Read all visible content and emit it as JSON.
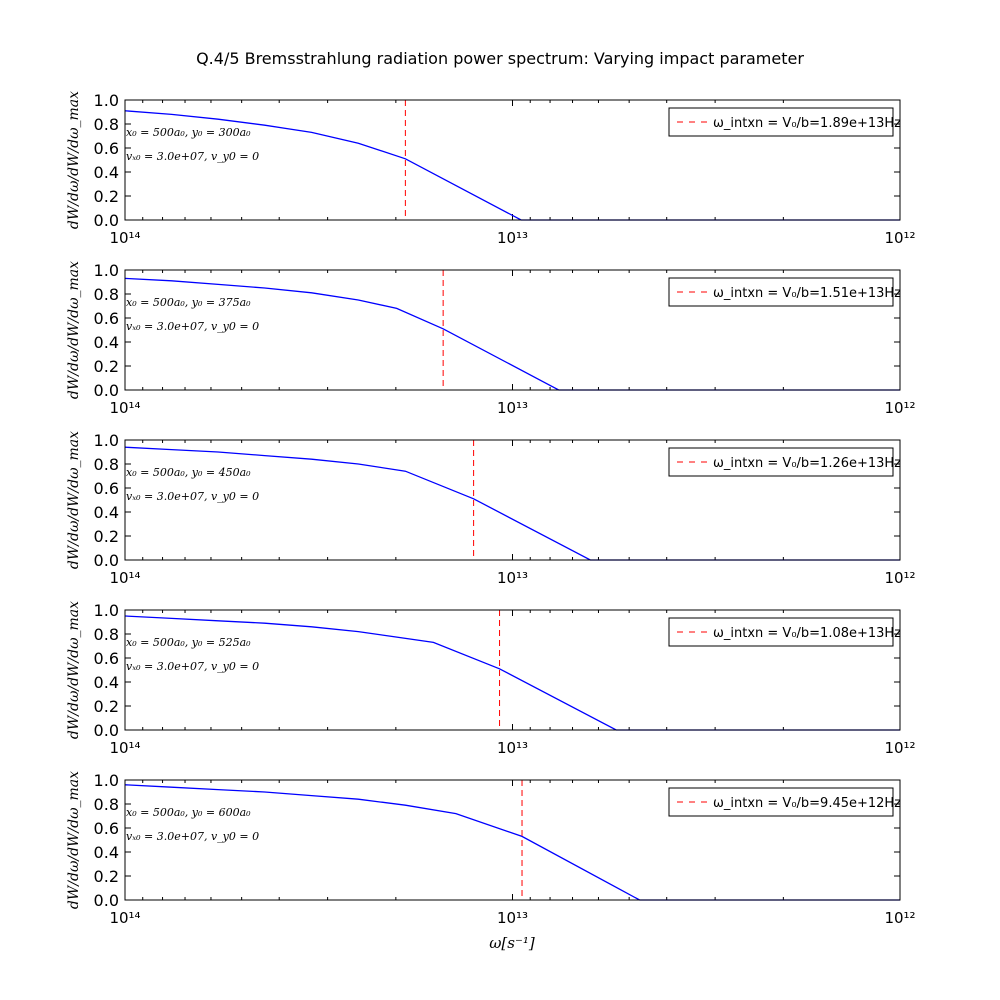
{
  "title": "Q.4/5 Bremsstrahlung radiation power spectrum: Varying impact parameter",
  "xlabel": "ω[s⁻¹]",
  "ylabel": "dW/dω/dW/dω_max",
  "colors": {
    "line": "#0000ff",
    "marker": "#ff0000",
    "axis": "#000000"
  },
  "chart_data": [
    {
      "type": "line",
      "xscale": "log",
      "xlim": [
        100000000000000.0,
        1000000000000.0
      ],
      "ylim": [
        0,
        1
      ],
      "xticks": [
        "10¹⁴",
        "10¹³",
        "10¹²"
      ],
      "yticks": [
        "0.0",
        "0.2",
        "0.4",
        "0.6",
        "0.8",
        "1.0"
      ],
      "annotation": [
        "x₀ = 500a₀, y₀ = 300a₀",
        "vₓ₀ = 3.0e+07, v_y0 = 0"
      ],
      "legend": "ω_intxn = V₀/b=1.89e+13Hz",
      "legend_position": "top-right",
      "marker_x": 18900000000000.0,
      "series": {
        "x": [
          100000000000000.0,
          75800000000000.0,
          57500000000000.0,
          43600000000000.0,
          33000000000000.0,
          25000000000000.0,
          18900000000000.0,
          9500000000000.0,
          1000000000000.0
        ],
        "y": [
          0.91,
          0.88,
          0.84,
          0.79,
          0.73,
          0.64,
          0.51,
          0.0,
          0.0
        ]
      }
    },
    {
      "type": "line",
      "xscale": "log",
      "xlim": [
        100000000000000.0,
        1000000000000.0
      ],
      "ylim": [
        0,
        1
      ],
      "xticks": [
        "10¹⁴",
        "10¹³",
        "10¹²"
      ],
      "yticks": [
        "0.0",
        "0.2",
        "0.4",
        "0.6",
        "0.8",
        "1.0"
      ],
      "annotation": [
        "x₀ = 500a₀, y₀ = 375a₀",
        "vₓ₀ = 3.0e+07, v_y0 = 0"
      ],
      "legend": "ω_intxn = V₀/b=1.51e+13Hz",
      "legend_position": "top-right",
      "marker_x": 15100000000000.0,
      "series": {
        "x": [
          100000000000000.0,
          75800000000000.0,
          57500000000000.0,
          43600000000000.0,
          33000000000000.0,
          25000000000000.0,
          19900000000000.0,
          15100000000000.0,
          7600000000000.0,
          1000000000000.0
        ],
        "y": [
          0.93,
          0.91,
          0.88,
          0.85,
          0.81,
          0.75,
          0.68,
          0.51,
          0.0,
          0.0
        ]
      }
    },
    {
      "type": "line",
      "xscale": "log",
      "xlim": [
        100000000000000.0,
        1000000000000.0
      ],
      "ylim": [
        0,
        1
      ],
      "xticks": [
        "10¹⁴",
        "10¹³",
        "10¹²"
      ],
      "yticks": [
        "0.0",
        "0.2",
        "0.4",
        "0.6",
        "0.8",
        "1.0"
      ],
      "annotation": [
        "x₀ = 500a₀, y₀ = 450a₀",
        "vₓ₀ = 3.0e+07, v_y0 = 0"
      ],
      "legend": "ω_intxn = V₀/b=1.26e+13Hz",
      "legend_position": "top-right",
      "marker_x": 12600000000000.0,
      "series": {
        "x": [
          100000000000000.0,
          75800000000000.0,
          57500000000000.0,
          43600000000000.0,
          33000000000000.0,
          25000000000000.0,
          18900000000000.0,
          12600000000000.0,
          6300000000000.0,
          1000000000000.0
        ],
        "y": [
          0.94,
          0.92,
          0.9,
          0.87,
          0.84,
          0.8,
          0.74,
          0.51,
          0.0,
          0.0
        ]
      }
    },
    {
      "type": "line",
      "xscale": "log",
      "xlim": [
        100000000000000.0,
        1000000000000.0
      ],
      "ylim": [
        0,
        1
      ],
      "xticks": [
        "10¹⁴",
        "10¹³",
        "10¹²"
      ],
      "yticks": [
        "0.0",
        "0.2",
        "0.4",
        "0.6",
        "0.8",
        "1.0"
      ],
      "annotation": [
        "x₀ = 500a₀, y₀ = 525a₀",
        "vₓ₀ = 3.0e+07, v_y0 = 0"
      ],
      "legend": "ω_intxn = V₀/b=1.08e+13Hz",
      "legend_position": "top-right",
      "marker_x": 10800000000000.0,
      "series": {
        "x": [
          100000000000000.0,
          75800000000000.0,
          57500000000000.0,
          43600000000000.0,
          33000000000000.0,
          25000000000000.0,
          16000000000000.0,
          10800000000000.0,
          5400000000000.0,
          1000000000000.0
        ],
        "y": [
          0.95,
          0.93,
          0.91,
          0.89,
          0.86,
          0.82,
          0.73,
          0.51,
          0.0,
          0.0
        ]
      }
    },
    {
      "type": "line",
      "xscale": "log",
      "xlim": [
        100000000000000.0,
        1000000000000.0
      ],
      "ylim": [
        0,
        1
      ],
      "xticks": [
        "10¹⁴",
        "10¹³",
        "10¹²"
      ],
      "yticks": [
        "0.0",
        "0.2",
        "0.4",
        "0.6",
        "0.8",
        "1.0"
      ],
      "annotation": [
        "x₀ = 500a₀, y₀ = 600a₀",
        "vₓ₀ = 3.0e+07, v_y0 = 0"
      ],
      "legend": "ω_intxn = V₀/b=9.45e+12Hz",
      "legend_position": "top-right",
      "marker_x": 9450000000000.0,
      "series": {
        "x": [
          100000000000000.0,
          75800000000000.0,
          57500000000000.0,
          43600000000000.0,
          33000000000000.0,
          25000000000000.0,
          18900000000000.0,
          14000000000000.0,
          9450000000000.0,
          4700000000000.0,
          1000000000000.0
        ],
        "y": [
          0.96,
          0.94,
          0.92,
          0.9,
          0.87,
          0.84,
          0.79,
          0.72,
          0.53,
          0.0,
          0.0
        ]
      }
    }
  ]
}
